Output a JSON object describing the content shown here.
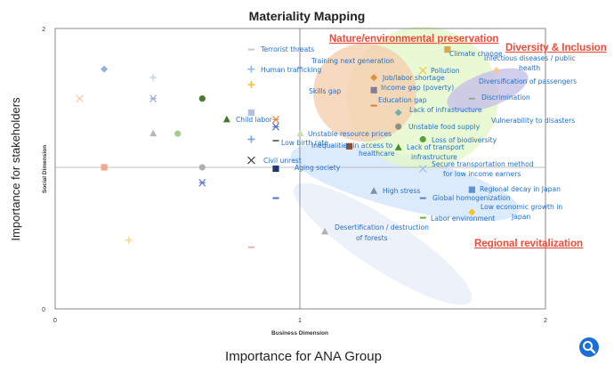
{
  "chart_data": {
    "type": "scatter",
    "title": "Materiality Mapping",
    "xlabel": "Business Dimension",
    "ylabel": "Social Dimension",
    "outer_xlabel": "Importance for ANA Group",
    "outer_ylabel": "Importance for stakeholders",
    "xlim": [
      0,
      2
    ],
    "ylim": [
      0,
      2
    ],
    "x_ticks": [
      "0",
      "1",
      "2"
    ],
    "y_ticks": [
      "0",
      "2"
    ],
    "grid": false,
    "quadrant_lines": {
      "x": 1,
      "y": 1
    },
    "groups": [
      {
        "label": "Nature/environmental preservation",
        "color": "#7fb3ef"
      },
      {
        "label": "Diversity & Inclusion",
        "color": "#f04a3a"
      },
      {
        "label": "Regional revitalization",
        "color": "#f04a3a"
      }
    ],
    "points": [
      {
        "x": 0.2,
        "y": 1.71,
        "marker": "diamond",
        "color": "#8fb0e0"
      },
      {
        "x": 0.4,
        "y": 1.65,
        "marker": "plus",
        "color": "#c5d8f2"
      },
      {
        "x": 0.1,
        "y": 1.5,
        "marker": "x",
        "color": "#f8c8a0"
      },
      {
        "x": 0.4,
        "y": 1.5,
        "marker": "asterisk",
        "color": "#9aa8dc"
      },
      {
        "x": 0.6,
        "y": 1.5,
        "marker": "circle",
        "color": "#4a7a30"
      },
      {
        "x": 0.8,
        "y": 1.85,
        "marker": "dash",
        "color": "#c8c8c8"
      },
      {
        "x": 0.8,
        "y": 1.71,
        "marker": "plus",
        "color": "#8fb8e8"
      },
      {
        "x": 0.8,
        "y": 1.6,
        "marker": "plus",
        "color": "#f0c040"
      },
      {
        "x": 0.8,
        "y": 1.4,
        "marker": "square",
        "color": "#b0c0e0"
      },
      {
        "x": 0.7,
        "y": 1.35,
        "marker": "triangle",
        "color": "#3f7a28"
      },
      {
        "x": 0.9,
        "y": 1.35,
        "marker": "asterisk",
        "color": "#e08a40"
      },
      {
        "x": 0.9,
        "y": 1.3,
        "marker": "asterisk",
        "color": "#5070b0"
      },
      {
        "x": 0.4,
        "y": 1.25,
        "marker": "triangle",
        "color": "#b8b8b8"
      },
      {
        "x": 0.5,
        "y": 1.25,
        "marker": "circle",
        "color": "#a8cc90"
      },
      {
        "x": 0.8,
        "y": 1.21,
        "marker": "plus",
        "color": "#7fa0d0"
      },
      {
        "x": 0.9,
        "y": 1.2,
        "marker": "dash",
        "color": "#707070"
      },
      {
        "x": 1.0,
        "y": 1.25,
        "marker": "triangle",
        "color": "#c8e0b8"
      },
      {
        "x": 0.8,
        "y": 1.06,
        "marker": "x",
        "color": "#404040"
      },
      {
        "x": 0.2,
        "y": 1.01,
        "marker": "square",
        "color": "#f0a890"
      },
      {
        "x": 0.6,
        "y": 1.01,
        "marker": "circle",
        "color": "#b0b0b0"
      },
      {
        "x": 0.9,
        "y": 1.0,
        "marker": "square",
        "color": "#203a70"
      },
      {
        "x": 0.6,
        "y": 0.9,
        "marker": "asterisk",
        "color": "#5a78c8"
      },
      {
        "x": 0.9,
        "y": 0.79,
        "marker": "dash",
        "color": "#5070c0"
      },
      {
        "x": 0.3,
        "y": 0.49,
        "marker": "plus",
        "color": "#f8d890"
      },
      {
        "x": 0.8,
        "y": 0.44,
        "marker": "dash",
        "color": "#f0b0b0"
      },
      {
        "x": 1.6,
        "y": 1.85,
        "marker": "square",
        "color": "#d8a850"
      },
      {
        "x": 1.5,
        "y": 1.7,
        "marker": "x",
        "color": "#f0c840"
      },
      {
        "x": 1.3,
        "y": 1.65,
        "marker": "diamond",
        "color": "#e0903a"
      },
      {
        "x": 1.3,
        "y": 1.56,
        "marker": "square",
        "color": "#8a7a9a"
      },
      {
        "x": 1.3,
        "y": 1.45,
        "marker": "dash",
        "color": "#e07840"
      },
      {
        "x": 1.4,
        "y": 1.4,
        "marker": "diamond",
        "color": "#70b0b0"
      },
      {
        "x": 1.4,
        "y": 1.3,
        "marker": "circle",
        "color": "#909080"
      },
      {
        "x": 1.5,
        "y": 1.21,
        "marker": "circle",
        "color": "#5aa040"
      },
      {
        "x": 1.4,
        "y": 1.15,
        "marker": "triangle",
        "color": "#4a9030"
      },
      {
        "x": 1.2,
        "y": 1.16,
        "marker": "square",
        "color": "#9a4a20"
      },
      {
        "x": 1.5,
        "y": 1.0,
        "marker": "x",
        "color": "#9ac0e8"
      },
      {
        "x": 1.8,
        "y": 1.7,
        "marker": "diamond",
        "color": "#f8c890"
      },
      {
        "x": 1.7,
        "y": 1.5,
        "marker": "dash",
        "color": "#98a890"
      },
      {
        "x": 1.3,
        "y": 0.84,
        "marker": "triangle",
        "color": "#7a90b0"
      },
      {
        "x": 1.5,
        "y": 0.79,
        "marker": "dash",
        "color": "#6080c0"
      },
      {
        "x": 1.7,
        "y": 0.85,
        "marker": "square",
        "color": "#6090d8"
      },
      {
        "x": 1.7,
        "y": 0.69,
        "marker": "diamond",
        "color": "#f8c020"
      },
      {
        "x": 1.5,
        "y": 0.65,
        "marker": "dash",
        "color": "#70b040"
      },
      {
        "x": 1.1,
        "y": 0.55,
        "marker": "triangle",
        "color": "#b0b0b0"
      }
    ],
    "annotations": [
      "Terrorist threats",
      "Human trafficking",
      "Training next generation",
      "Skills gap",
      "Child labor",
      "Unstable resource prices",
      "Low birth rate",
      "Inequalities in access to",
      "healthcare",
      "Civil unrest",
      "Aging society",
      "Climate change",
      "Pollution",
      "Job/labor shortage",
      "Income gap (poverty)",
      "Education gap",
      "Lack of infrastructure",
      "Unstable food supply",
      "Loss of biodiversity",
      "Lack of transport",
      "infrastructure",
      "Secure transportation method",
      "for low income earners",
      "Infectious diseases / public",
      "health",
      "Diversification of passengers",
      "Discrimination",
      "Vulnerability to disasters",
      "High stress",
      "Global homogenization",
      "Regional decay in Japan",
      "Low economic growth in",
      "Japan",
      "Labor environment",
      "Desertification / destruction",
      "of forests"
    ]
  },
  "search_button": {
    "icon": "magnifier-icon",
    "color": "#1a6fd8"
  }
}
